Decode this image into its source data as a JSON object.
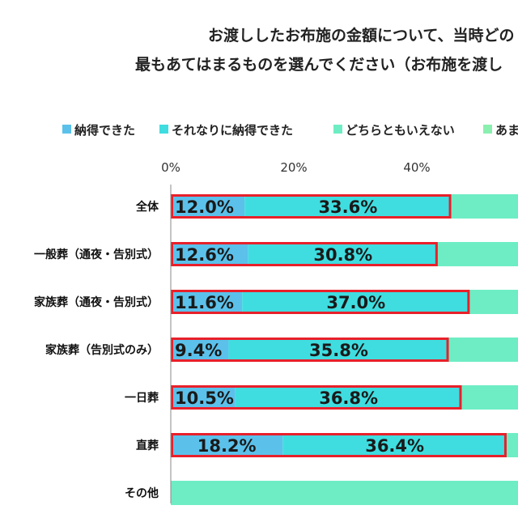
{
  "title": {
    "line1": "お渡ししたお布施の金額について、当時どの",
    "line2": "最もあてはまるものを選んでください（お布施を渡し"
  },
  "colors": {
    "series1": "#5bc1eb",
    "series2": "#3fdde0",
    "series3": "#6eedc4",
    "series4": "#8af0b0",
    "highlight": "#e8202a",
    "axis": "#888888"
  },
  "chart_data": {
    "type": "bar",
    "orientation": "horizontal",
    "stacked": true,
    "title": "お渡ししたお布施の金額について、当時どの 最もあてはまるものを選んでください（お布施を渡し",
    "categories": [
      "全体",
      "一般葬（通夜・告別式）",
      "家族葬（通夜・告別式）",
      "家族葬（告別式のみ）",
      "一日葬",
      "直葬",
      "その他"
    ],
    "series": [
      {
        "name": "納得できた",
        "values": [
          12.0,
          12.6,
          11.6,
          9.4,
          10.5,
          18.2,
          0.0
        ]
      },
      {
        "name": "それなりに納得できた",
        "values": [
          33.6,
          30.8,
          37.0,
          35.8,
          36.8,
          36.4,
          0.0
        ]
      },
      {
        "name": "どちらともいえない",
        "values": [
          null,
          null,
          null,
          null,
          null,
          null,
          null
        ]
      },
      {
        "name": "あま",
        "values": [
          null,
          null,
          null,
          null,
          null,
          null,
          null
        ]
      }
    ],
    "value_labels": [
      [
        "12.0%",
        "33.6%"
      ],
      [
        "12.6%",
        "30.8%"
      ],
      [
        "11.6%",
        "37.0%"
      ],
      [
        "9.4%",
        "35.8%"
      ],
      [
        "10.5%",
        "36.8%"
      ],
      [
        "18.2%",
        "36.4%"
      ],
      [
        "",
        ""
      ]
    ],
    "x_ticks": [
      "0%",
      "20%",
      "40%"
    ],
    "xlim": [
      0,
      56
    ],
    "legend_position": "top",
    "grid": false
  }
}
